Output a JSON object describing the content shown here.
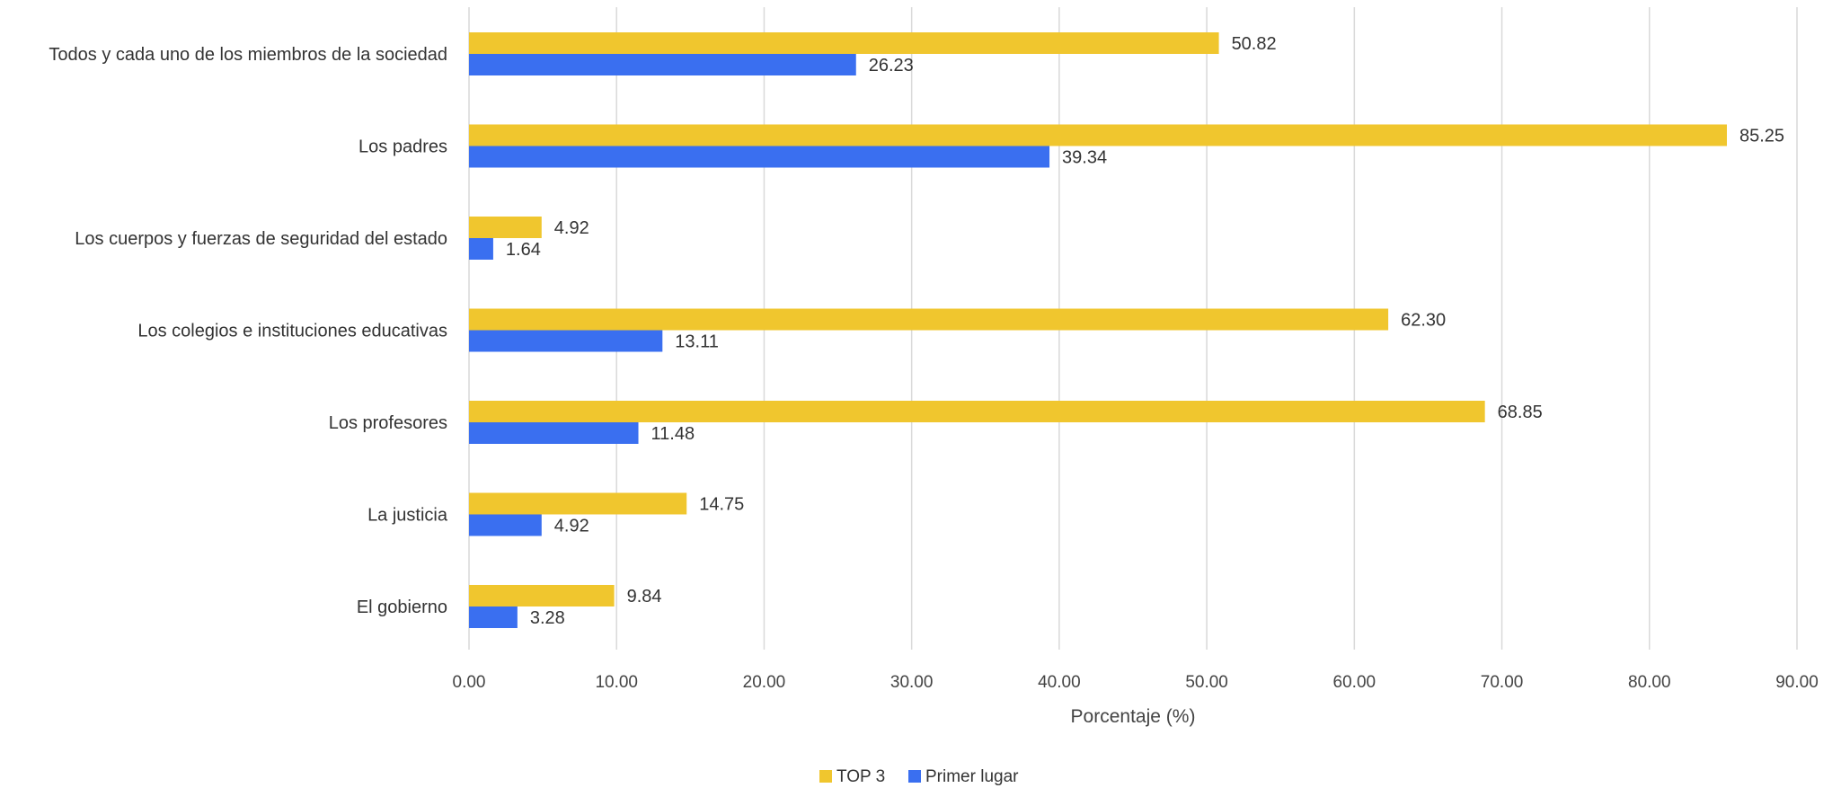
{
  "chart_data": {
    "type": "bar",
    "orientation": "horizontal",
    "categories": [
      "Todos y cada uno de los miembros de la sociedad",
      "Los padres",
      "Los cuerpos y fuerzas de seguridad del estado",
      "Los colegios e instituciones educativas",
      "Los profesores",
      "La justicia",
      "El gobierno"
    ],
    "series": [
      {
        "name": "TOP 3",
        "color": "#F0C62E",
        "values": [
          50.82,
          85.25,
          4.92,
          62.3,
          68.85,
          14.75,
          9.84
        ]
      },
      {
        "name": "Primer lugar",
        "color": "#3A6FF0",
        "values": [
          26.23,
          39.34,
          1.64,
          13.11,
          11.48,
          4.92,
          3.28
        ]
      }
    ],
    "value_labels": [
      [
        "50.82",
        "85.25",
        "4.92",
        "62.30",
        "68.85",
        "14.75",
        "9.84"
      ],
      [
        "26.23",
        "39.34",
        "1.64",
        "13.11",
        "11.48",
        "4.92",
        "3.28"
      ]
    ],
    "xlabel": "Porcentaje (%)",
    "ylabel": "",
    "xlim": [
      0,
      90
    ],
    "xticks": [
      0,
      10,
      20,
      30,
      40,
      50,
      60,
      70,
      80,
      90
    ],
    "xtick_labels": [
      "0.00",
      "10.00",
      "20.00",
      "30.00",
      "40.00",
      "50.00",
      "60.00",
      "70.00",
      "80.00",
      "90.00"
    ],
    "grid": "vertical",
    "legend": "bottom-center"
  }
}
